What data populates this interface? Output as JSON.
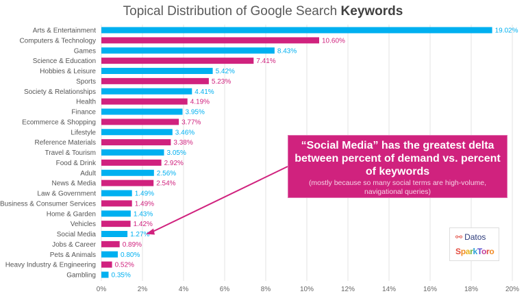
{
  "chart_data": {
    "type": "bar",
    "orientation": "horizontal",
    "title_plain": "Topical Distribution of Google Search ",
    "title_bold": "Keywords",
    "categories": [
      "Arts & Entertainment",
      "Computers & Technology",
      "Games",
      "Science & Education",
      "Hobbies & Leisure",
      "Sports",
      "Society & Relationships",
      "Health",
      "Finance",
      "Ecommerce & Shopping",
      "Lifestyle",
      "Reference Materials",
      "Travel & Tourism",
      "Food & Drink",
      "Adult",
      "News & Media",
      "Law & Government",
      "Business & Consumer Services",
      "Home & Garden",
      "Vehicles",
      "Social Media",
      "Jobs & Career",
      "Pets & Animals",
      "Heavy Industry & Engineering",
      "Gambling"
    ],
    "values": [
      19.02,
      10.6,
      8.43,
      7.41,
      5.42,
      5.23,
      4.41,
      4.19,
      3.95,
      3.77,
      3.46,
      3.38,
      3.05,
      2.92,
      2.56,
      2.54,
      1.49,
      1.49,
      1.43,
      1.42,
      1.27,
      0.89,
      0.8,
      0.52,
      0.35
    ],
    "data_labels": [
      "19.02%",
      "10.60%",
      "8.43%",
      "7.41%",
      "5.42%",
      "5.23%",
      "4.41%",
      "4.19%",
      "3.95%",
      "3.77%",
      "3.46%",
      "3.38%",
      "3.05%",
      "2.92%",
      "2.56%",
      "2.54%",
      "1.49%",
      "1.49%",
      "1.43%",
      "1.42%",
      "1.27%",
      "0.89%",
      "0.80%",
      "0.52%",
      "0.35%"
    ],
    "xlim": [
      0,
      20
    ],
    "xticks": [
      "0%",
      "2%",
      "4%",
      "6%",
      "8%",
      "10%",
      "12%",
      "14%",
      "16%",
      "18%",
      "20%"
    ],
    "grid": true,
    "colors": {
      "blue": "#00b0f0",
      "magenta": "#d0227e"
    },
    "color_pattern": "alternating blue / magenta starting with blue",
    "annotation": {
      "main": "“Social Media” has the greatest delta between percent of demand vs. percent of keywords",
      "sub": "(mostly because so many social terms are high-volume, navigational queries)",
      "points_to": "Social Media"
    }
  },
  "logos": {
    "datos": "Datos",
    "sparktoro": "SparkToro"
  }
}
